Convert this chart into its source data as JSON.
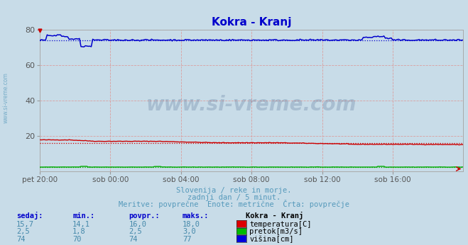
{
  "title": "Kokra - Kranj",
  "title_color": "#0000cc",
  "background_color": "#c8dce8",
  "plot_bg_color": "#c8dce8",
  "xlim": [
    0,
    288
  ],
  "ylim": [
    0,
    80
  ],
  "yticks": [
    20,
    40,
    60,
    80
  ],
  "xtick_labels": [
    "pet 20:00",
    "sob 00:00",
    "sob 04:00",
    "sob 08:00",
    "sob 12:00",
    "sob 16:00"
  ],
  "xtick_positions": [
    0,
    48,
    96,
    144,
    192,
    240
  ],
  "grid_color": "#daa0a0",
  "subtitle_lines": [
    "Slovenija / reke in morje.",
    "zadnji dan / 5 minut.",
    "Meritve: povprečne  Enote: metrične  Črta: povprečje"
  ],
  "text_color": "#5599bb",
  "watermark": "www.si-vreme.com",
  "watermark_color": "#1a3a6a",
  "legend_title": "Kokra - Kranj",
  "legend_items": [
    {
      "label": "temperatura[C]",
      "color": "#dd0000"
    },
    {
      "label": "pretok[m3/s]",
      "color": "#00bb00"
    },
    {
      "label": "višina[cm]",
      "color": "#0000dd"
    }
  ],
  "table_headers": [
    "sedaj:",
    "min.:",
    "povpr.:",
    "maks.:"
  ],
  "table_data": [
    [
      "15,7",
      "14,1",
      "16,0",
      "18,0"
    ],
    [
      "2,5",
      "1,8",
      "2,5",
      "3,0"
    ],
    [
      "74",
      "70",
      "74",
      "77"
    ]
  ],
  "temp_avg": 16.0,
  "temp_min": 14.1,
  "temp_max": 18.0,
  "flow_avg": 2.5,
  "flow_min": 1.8,
  "flow_max": 3.0,
  "height_avg": 74,
  "height_min": 70,
  "height_max": 77
}
